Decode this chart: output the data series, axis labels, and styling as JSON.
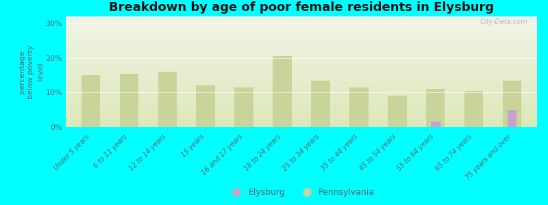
{
  "title": "Breakdown by age of poor female residents in Elysburg",
  "ylabel": "percentage\nbelow poverty\nlevel",
  "categories": [
    "Under 5 years",
    "6 to 11 years",
    "12 to 14 years",
    "15 years",
    "16 and 17 years",
    "18 to 24 years",
    "25 to 34 years",
    "35 to 44 years",
    "45 to 54 years",
    "55 to 64 years",
    "65 to 74 years",
    "75 years and over"
  ],
  "elysburg_values": [
    null,
    null,
    null,
    null,
    null,
    null,
    null,
    null,
    null,
    1.5,
    null,
    5.0
  ],
  "pennsylvania_values": [
    15.0,
    15.5,
    16.0,
    12.0,
    11.5,
    20.5,
    13.5,
    11.5,
    9.0,
    11.0,
    10.5,
    13.5
  ],
  "elysburg_color": "#c8a2c8",
  "pennsylvania_color": "#c8d49a",
  "background_color": "#00ffff",
  "grad_top": "#f0f4e8",
  "grad_bottom": "#dce8b8",
  "ylim": [
    0,
    32
  ],
  "yticks": [
    0,
    10,
    20,
    30
  ],
  "ytick_labels": [
    "0%",
    "10%",
    "20%",
    "30%"
  ],
  "bar_width": 0.35,
  "title_fontsize": 13,
  "axis_label_fontsize": 8,
  "tick_label_color": "#556677",
  "title_color": "#111111",
  "watermark": "City-Data.com"
}
